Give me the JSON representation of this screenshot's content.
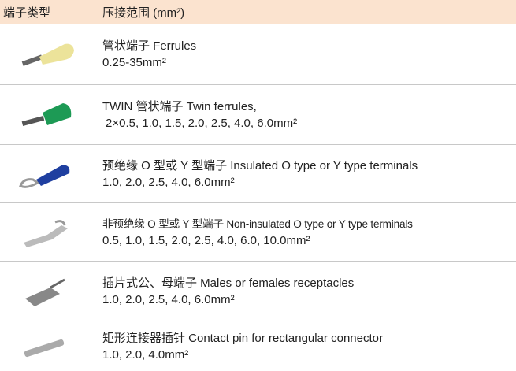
{
  "header": {
    "col1": "端子类型",
    "col2": "压接范围 (mm²)"
  },
  "rows": [
    {
      "name": "管状端子 Ferrules",
      "spec": "0.25-35mm²"
    },
    {
      "name": "TWIN 管状端子 Twin ferrules,",
      "spec": "2×0.5, 1.0, 1.5, 2.0, 2.5, 4.0, 6.0mm²"
    },
    {
      "name": "预绝缘 O 型或 Y 型端子 Insulated O type or Y type terminals",
      "spec": "1.0, 2.0, 2.5, 4.0, 6.0mm²"
    },
    {
      "name": "非预绝缘 O 型或 Y 型端子 Non-insulated O type or Y type terminals",
      "spec": "0.5, 1.0, 1.5, 2.0, 2.5, 4.0, 6.0, 10.0mm²"
    },
    {
      "name": "插片式公、母端子 Males or females receptacles",
      "spec": "1.0, 2.0, 2.5, 4.0, 6.0mm²"
    },
    {
      "name": "矩形连接器插针 Contact pin for rectangular connector",
      "spec": "1.0, 2.0, 4.0mm²"
    }
  ]
}
